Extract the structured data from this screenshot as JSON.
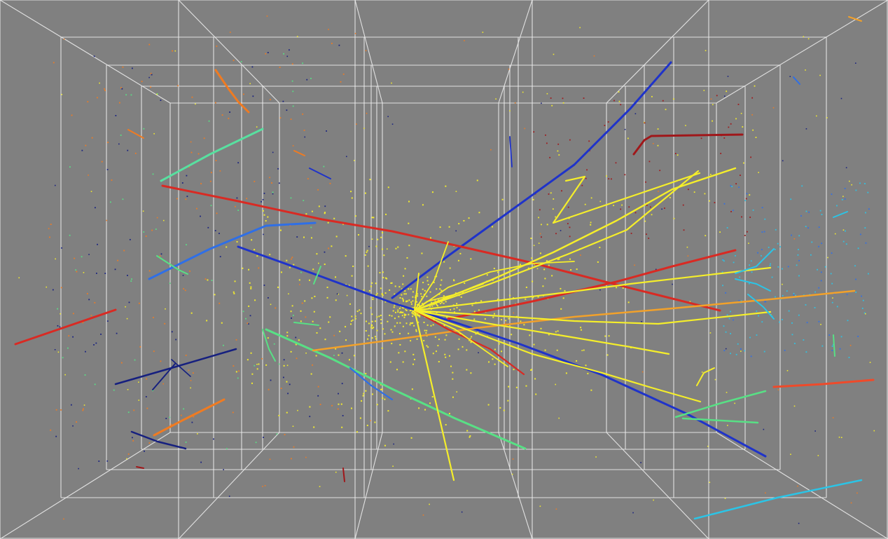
{
  "scene": {
    "background_color": "#808080",
    "grid_color": "#ececec",
    "track_colors": {
      "yellow": "#f5ee2a",
      "blue": "#1f33c9",
      "navy": "#16207f",
      "red": "#d92a23",
      "dark_red": "#a0171a",
      "orange": "#ef7b22",
      "amber": "#f2a12a",
      "light_green": "#58e085",
      "cyan": "#2bc4e6",
      "mid_blue": "#2f6fe6"
    }
  }
}
